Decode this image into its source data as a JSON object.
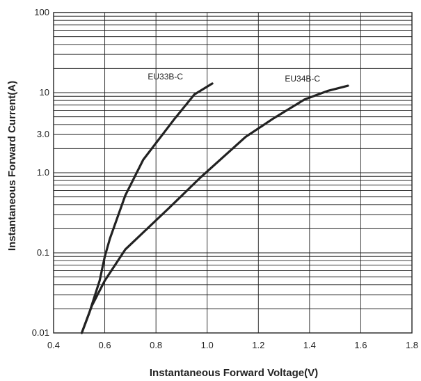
{
  "chart_data": {
    "type": "line",
    "xlabel": "Instantaneous Forward Voltage(V)",
    "ylabel": "Instantaneous Forward Current(A)",
    "xscale": "linear",
    "yscale": "log",
    "xlim": [
      0.4,
      1.8
    ],
    "ylim": [
      0.01,
      100
    ],
    "grid": true,
    "x_ticks": [
      "0.4",
      "0.6",
      "0.8",
      "1.0",
      "1.2",
      "1.4",
      "1.6",
      "1.8"
    ],
    "y_ticks": [
      {
        "value": 100,
        "label": "100"
      },
      {
        "value": 10,
        "label": "10"
      },
      {
        "value": 3,
        "label": "3.0"
      },
      {
        "value": 1,
        "label": "1.0"
      },
      {
        "value": 0.1,
        "label": "0.1"
      },
      {
        "value": 0.01,
        "label": "0.01"
      }
    ],
    "series": [
      {
        "name": "EU33B-C",
        "points": [
          [
            0.51,
            0.01
          ],
          [
            0.54,
            0.018
          ],
          [
            0.58,
            0.045
          ],
          [
            0.6,
            0.09
          ],
          [
            0.62,
            0.15
          ],
          [
            0.68,
            0.52
          ],
          [
            0.75,
            1.45
          ],
          [
            0.87,
            4.6
          ],
          [
            0.95,
            9.5
          ],
          [
            1.02,
            13.0
          ]
        ]
      },
      {
        "name": "EU34B-C",
        "points": [
          [
            0.51,
            0.01
          ],
          [
            0.55,
            0.022
          ],
          [
            0.6,
            0.045
          ],
          [
            0.68,
            0.11
          ],
          [
            0.85,
            0.36
          ],
          [
            0.97,
            0.85
          ],
          [
            1.15,
            2.8
          ],
          [
            1.26,
            4.8
          ],
          [
            1.38,
            8.2
          ],
          [
            1.47,
            10.5
          ],
          [
            1.55,
            12.2
          ]
        ]
      }
    ]
  }
}
